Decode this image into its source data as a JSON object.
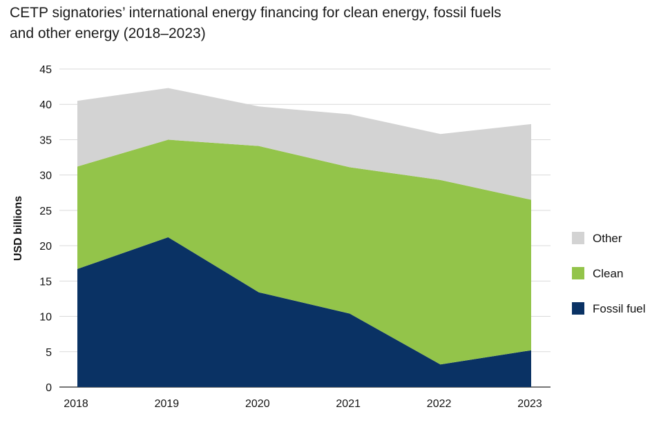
{
  "title": {
    "line1": "CETP signatories’ international energy financing for clean energy, fossil fuels",
    "line2": "and other energy (2018–2023)"
  },
  "chart_data": {
    "type": "area",
    "stacked": true,
    "categories": [
      "2018",
      "2019",
      "2020",
      "2021",
      "2022",
      "2023"
    ],
    "series": [
      {
        "name": "Fossil fuel",
        "color": "#0a3264",
        "values": [
          16.7,
          21.2,
          13.4,
          10.4,
          3.2,
          5.2
        ]
      },
      {
        "name": "Clean",
        "color": "#93c44a",
        "values": [
          14.5,
          13.8,
          20.7,
          20.7,
          26.1,
          21.3
        ]
      },
      {
        "name": "Other",
        "color": "#d3d3d3",
        "values": [
          9.3,
          7.3,
          5.6,
          7.5,
          6.5,
          10.7
        ]
      }
    ],
    "legend_order": [
      "Other",
      "Clean",
      "Fossil fuel"
    ],
    "ylabel": "USD billions",
    "xlabel": "",
    "ylim": [
      0,
      45
    ],
    "yticks": [
      0,
      5,
      10,
      15,
      20,
      25,
      30,
      35,
      40,
      45
    ],
    "grid": true,
    "legend_position": "right"
  }
}
